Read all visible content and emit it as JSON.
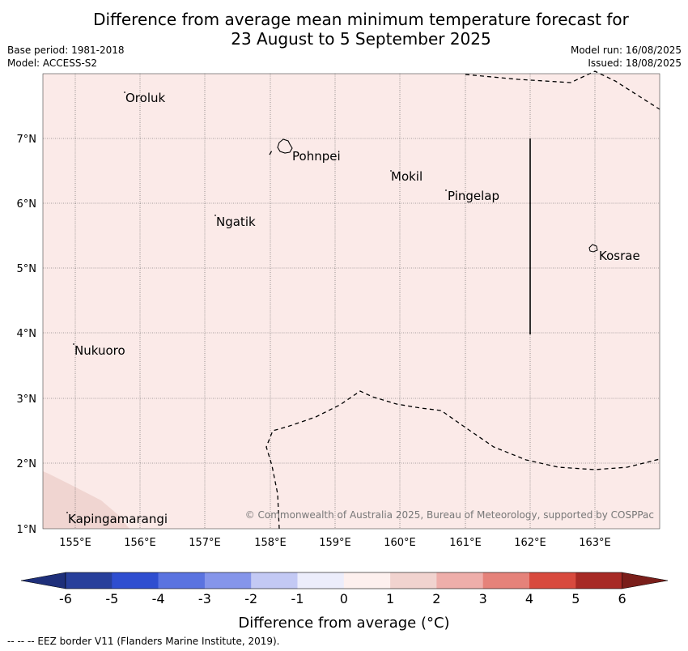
{
  "title_line1": "Difference from average mean minimum temperature forecast for",
  "title_line2": "23 August to 5 September 2025",
  "meta_left": {
    "base_period": "Base period: 1981-2018",
    "model": "Model: ACCESS-S2"
  },
  "meta_right": {
    "model_run": "Model run: 16/08/2025",
    "issued": "Issued: 18/08/2025"
  },
  "map": {
    "lon_ticks": [
      "155°E",
      "156°E",
      "157°E",
      "158°E",
      "159°E",
      "160°E",
      "161°E",
      "162°E",
      "163°E"
    ],
    "lat_ticks": [
      "1°N",
      "2°N",
      "3°N",
      "4°N",
      "5°N",
      "6°N",
      "7°N"
    ],
    "places": [
      {
        "name": "Oroluk"
      },
      {
        "name": "Pohnpei"
      },
      {
        "name": "Mokil"
      },
      {
        "name": "Pingelap"
      },
      {
        "name": "Ngatik"
      },
      {
        "name": "Kosrae"
      },
      {
        "name": "Nukuoro"
      },
      {
        "name": "Kapingamarangi"
      }
    ],
    "copyright": "© Commonwealth of Australia 2025, Bureau of Meteorology, supported by COSPPac",
    "background_color": "#fbeae8",
    "shaded_color": "#f0d5d1"
  },
  "colorbar": {
    "ticks": [
      "-6",
      "-5",
      "-4",
      "-3",
      "-2",
      "-1",
      "0",
      "1",
      "2",
      "3",
      "4",
      "5",
      "6"
    ],
    "colors": [
      "#283f9b",
      "#2f4ed0",
      "#5a73e0",
      "#8595ea",
      "#c3c9f4",
      "#ecedfb",
      "#fdf0ee",
      "#f1d3cf",
      "#eeaeaa",
      "#e5827a",
      "#d84a3e",
      "#a72a25"
    ],
    "low_extend_color": "#1e2f7a",
    "high_extend_color": "#7a1e1a",
    "label": "Difference from average (°C)"
  },
  "footnote": "--  --  -- EEZ border V11 (Flanders Marine Institute, 2019)."
}
